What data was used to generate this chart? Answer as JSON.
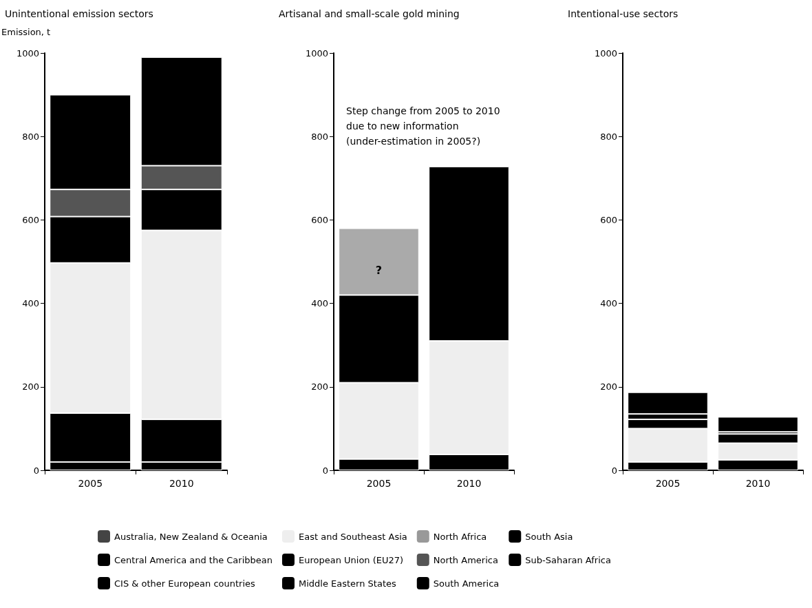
{
  "chart_data": [
    {
      "type": "bar",
      "title": "Unintentional emission sectors",
      "ylabel": "Emission, t",
      "categories": [
        "2005",
        "2010"
      ],
      "stacked": true,
      "ylim": [
        0,
        1000
      ],
      "yticks": [
        0,
        200,
        400,
        600,
        800,
        1000
      ],
      "grid": false,
      "legend": "bottom",
      "series": [
        {
          "name": "Australia, New Zealand & Oceania",
          "color": "#444444",
          "values": [
            null,
            null
          ]
        },
        {
          "name": "Central America and the Caribbean",
          "color": "#000000",
          "values": [
            20,
            20
          ]
        },
        {
          "name": "CIS & other European countries",
          "color": "#000000",
          "values": [
            117,
            102
          ]
        },
        {
          "name": "East and Southeast Asia",
          "color": "#eeeeee",
          "values": [
            360,
            453
          ]
        },
        {
          "name": "European Union (EU27)",
          "color": "#000000",
          "values": [
            111,
            98
          ]
        },
        {
          "name": "Middle Eastern States",
          "color": "#000000",
          "values": [
            null,
            null
          ]
        },
        {
          "name": "North Africa",
          "color": "#999999",
          "values": [
            null,
            null
          ]
        },
        {
          "name": "North America",
          "color": "#555555",
          "values": [
            65,
            57
          ]
        },
        {
          "name": "South America",
          "color": "#000000",
          "values": [
            null,
            null
          ]
        },
        {
          "name": "South Asia",
          "color": "#000000",
          "values": [
            227,
            260
          ]
        },
        {
          "name": "Sub-Saharan Africa",
          "color": "#000000",
          "values": [
            null,
            null
          ]
        }
      ]
    },
    {
      "type": "bar",
      "title": "Artisanal and small-scale gold mining",
      "categories": [
        "2005",
        "2010"
      ],
      "stacked": true,
      "ylim": [
        0,
        1000
      ],
      "yticks": [
        0,
        200,
        400,
        600,
        800,
        1000
      ],
      "grid": false,
      "annotations": [
        "Step change from 2005 to 2010 due to new information (under-estimation in 2005?)",
        "?"
      ],
      "series": [
        {
          "color": "#000000",
          "values": [
            27,
            38
          ]
        },
        {
          "color": "#eeeeee",
          "values": [
            183,
            272
          ]
        },
        {
          "color": "#000000",
          "values": [
            210,
            418
          ]
        },
        {
          "color": "#aaaaaa",
          "values": [
            160,
            null
          ]
        }
      ]
    },
    {
      "type": "bar",
      "title": "Intentional-use sectors",
      "categories": [
        "2005",
        "2010"
      ],
      "stacked": true,
      "ylim": [
        0,
        1000
      ],
      "yticks": [
        0,
        200,
        400,
        600,
        800,
        1000
      ],
      "grid": false,
      "series": [
        {
          "color": "#000000",
          "values": [
            20,
            25
          ]
        },
        {
          "color": "#eeeeee",
          "values": [
            80,
            40
          ]
        },
        {
          "color": "#000000",
          "values": [
            22,
            22
          ]
        },
        {
          "color": "#000000",
          "values": [
            13,
            5
          ]
        },
        {
          "color": "#000000",
          "values": [
            52,
            36
          ]
        }
      ]
    }
  ]
}
